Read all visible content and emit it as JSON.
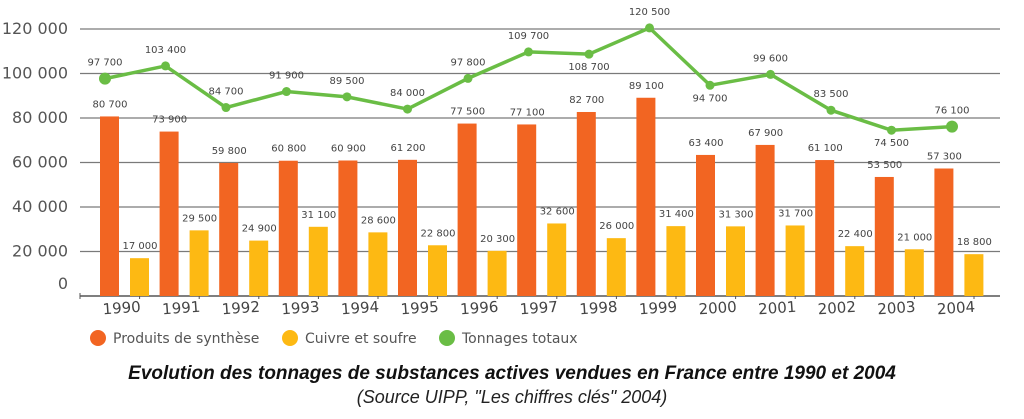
{
  "chart_data": {
    "type": "bar+line",
    "title": "Evolution des tonnages de substances actives vendues en France entre 1990 et 2004",
    "subtitle": "(Source UIPP, \"Les chiffres clés\" 2004)",
    "categories": [
      "1990",
      "1991",
      "1992",
      "1993",
      "1994",
      "1995",
      "1996",
      "1997",
      "1998",
      "1999",
      "2000",
      "2001",
      "2002",
      "2003",
      "2004"
    ],
    "ylim": [
      0,
      120000
    ],
    "yticks": [
      0,
      20000,
      40000,
      60000,
      80000,
      100000,
      120000
    ],
    "ytick_labels": [
      "0",
      "20 000",
      "40 000",
      "60 000",
      "80 000",
      "100 000",
      "120 000"
    ],
    "grid": true,
    "legend_position": "bottom-left",
    "series": [
      {
        "name": "Produits de synthèse",
        "type": "bar",
        "color": "#f26522",
        "values": [
          80700,
          73900,
          59800,
          60800,
          60900,
          61200,
          77500,
          77100,
          82700,
          89100,
          63400,
          67900,
          61100,
          53500,
          57300
        ],
        "labels": [
          "80 700",
          "73 900",
          "59 800",
          "60 800",
          "60 900",
          "61 200",
          "77 500",
          "77 100",
          "82 700",
          "89 100",
          "63 400",
          "67 900",
          "61 100",
          "53 500",
          "57 300"
        ]
      },
      {
        "name": "Cuivre et soufre",
        "type": "bar",
        "color": "#fdb913",
        "values": [
          17000,
          29500,
          24900,
          31100,
          28600,
          22800,
          20300,
          32600,
          26000,
          31400,
          31300,
          31700,
          22400,
          21000,
          18800
        ],
        "labels": [
          "17 000",
          "29 500",
          "24 900",
          "31 100",
          "28 600",
          "22 800",
          "20 300",
          "32 600",
          "26 000",
          "31 400",
          "31 300",
          "31 700",
          "22 400",
          "21 000",
          "18 800"
        ]
      },
      {
        "name": "Tonnages totaux",
        "type": "line",
        "color": "#6abd45",
        "values": [
          97700,
          103400,
          84700,
          91900,
          89500,
          84000,
          97800,
          109700,
          108700,
          120500,
          94700,
          99600,
          83500,
          74500,
          76100
        ],
        "labels": [
          "97 700",
          "103 400",
          "84 700",
          "91 900",
          "89 500",
          "84 000",
          "97 800",
          "109 700",
          "108 700",
          "120 500",
          "94 700",
          "99 600",
          "83 500",
          "74 500",
          "76 100"
        ]
      }
    ]
  }
}
